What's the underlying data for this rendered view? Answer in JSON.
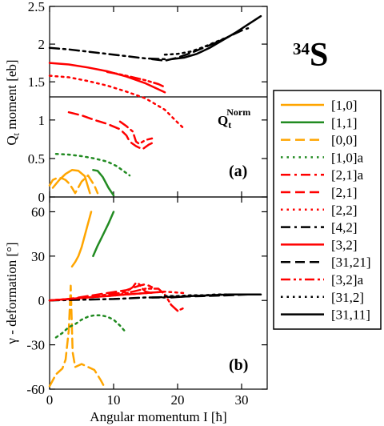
{
  "chart_data": [
    {
      "panel": "(a)",
      "type": "line",
      "ylabel_main": "Q",
      "ylabel_sub": "t",
      "ylabel_rest": " moment [eb]",
      "annotation_main": "Q",
      "annotation_sub": "t",
      "annotation_sup": "Norm",
      "xlim": [
        0,
        34
      ],
      "upper": {
        "ylim": [
          1.3,
          2.5
        ],
        "yticks": [
          "1.5",
          "2",
          "2.5"
        ]
      },
      "lower": {
        "ylim": [
          0,
          1.3
        ],
        "yticks": [
          "0",
          "0.5",
          "1"
        ]
      },
      "series": [
        {
          "name": "[1,0]",
          "part": "lower",
          "x": [
            0.5,
            1.5,
            2.5,
            3.5,
            4.5,
            5.5,
            6.3
          ],
          "y": [
            0.12,
            0.22,
            0.3,
            0.35,
            0.34,
            0.27,
            0.05
          ]
        },
        {
          "name": "[1,1]",
          "part": "lower",
          "x": [
            6.8,
            7.5,
            8.3,
            9.2,
            10.0
          ],
          "y": [
            0.35,
            0.34,
            0.26,
            0.12,
            0.02
          ]
        },
        {
          "name": "[0,0]",
          "part": "lower",
          "x": [
            0,
            0.5,
            1,
            1.5,
            2,
            2.5,
            3,
            3.5,
            4,
            5,
            6,
            7,
            7.5
          ],
          "y": [
            0.15,
            0.22,
            0.24,
            0.25,
            0.24,
            0.22,
            0.18,
            0.12,
            0.05,
            0.2,
            0.28,
            0.15,
            0.05
          ]
        },
        {
          "name": "[1,0]a",
          "part": "lower",
          "x": [
            1,
            3,
            5,
            7,
            9,
            10.5,
            12.5
          ],
          "y": [
            0.56,
            0.55,
            0.53,
            0.5,
            0.46,
            0.4,
            0.28
          ]
        },
        {
          "name": "[2,1]a",
          "part": "lower",
          "x": [
            11,
            12,
            13,
            13.5,
            14,
            15,
            16
          ],
          "y": [
            0.98,
            0.92,
            0.85,
            0.72,
            0.69,
            0.74,
            0.76
          ]
        },
        {
          "name": "[2,1]",
          "part": "lower",
          "x": [
            3,
            5,
            7,
            9,
            11,
            12,
            12.5,
            13.5,
            14.5,
            15.5,
            16.5
          ],
          "y": [
            1.1,
            1.06,
            1.0,
            0.95,
            0.88,
            0.8,
            0.72,
            0.66,
            0.62,
            0.68,
            0.72
          ]
        },
        {
          "name": "[2,2]",
          "part": "upper",
          "x": [
            0,
            3,
            6,
            9,
            12,
            15,
            18,
            20,
            21
          ],
          "y": [
            1.58,
            1.56,
            1.51,
            1.45,
            1.37,
            1.28,
            1.13,
            0.96,
            0.88
          ]
        },
        {
          "name": "[4,2]",
          "part": "upper",
          "x": [
            0,
            3,
            6,
            9,
            12,
            15,
            18
          ],
          "y": [
            1.95,
            1.93,
            1.9,
            1.87,
            1.84,
            1.81,
            1.8
          ]
        },
        {
          "name": "[3,2]",
          "part": "upper",
          "x": [
            0,
            3,
            6,
            9,
            12,
            15,
            18
          ],
          "y": [
            1.75,
            1.73,
            1.69,
            1.64,
            1.57,
            1.48,
            1.36
          ]
        },
        {
          "name": "[31,21]",
          "part": "upper",
          "x": [
            16,
            18,
            20,
            22,
            24,
            26,
            28,
            30,
            31
          ],
          "y": [
            1.8,
            1.78,
            1.82,
            1.88,
            1.95,
            2.02,
            2.1,
            2.18,
            2.21
          ]
        },
        {
          "name": "[3,2]a",
          "part": "upper",
          "x": [
            9,
            11,
            13,
            15,
            17,
            18
          ],
          "y": [
            1.63,
            1.6,
            1.56,
            1.52,
            1.47,
            1.43
          ]
        },
        {
          "name": "[31,2]",
          "part": "upper",
          "x": [
            18,
            20,
            22,
            24,
            26,
            28
          ],
          "y": [
            1.86,
            1.87,
            1.9,
            1.96,
            2.03,
            2.1
          ]
        },
        {
          "name": "[31,11]",
          "part": "upper",
          "x": [
            19,
            21,
            23,
            25,
            27,
            29,
            31,
            33
          ],
          "y": [
            1.8,
            1.82,
            1.87,
            1.95,
            2.05,
            2.15,
            2.26,
            2.37
          ]
        }
      ]
    },
    {
      "panel": "(b)",
      "type": "line",
      "ylabel": "γ - deformation [°]",
      "xlabel": "Angular momentum I [ħ]",
      "xlim": [
        0,
        34
      ],
      "xticks": [
        "0",
        "10",
        "20",
        "30"
      ],
      "ylim": [
        -60,
        70
      ],
      "yticks": [
        "-60",
        "-30",
        "0",
        "30",
        "60"
      ],
      "series": [
        {
          "name": "[1,0]",
          "x": [
            3.5,
            4,
            4.5,
            5,
            5.5,
            6,
            6.5
          ],
          "y": [
            23,
            26,
            30,
            36,
            44,
            52,
            60
          ]
        },
        {
          "name": "[1,1]",
          "x": [
            6.8,
            7.5,
            8.3,
            9.2,
            10.0
          ],
          "y": [
            30,
            37,
            44,
            52,
            60
          ]
        },
        {
          "name": "[0,0]",
          "x": [
            0,
            0.5,
            1,
            1.5,
            2,
            2.5,
            3,
            3.3,
            3.6,
            4,
            5,
            6,
            7,
            8,
            8.5
          ],
          "y": [
            -58,
            -54,
            -50,
            -48,
            -46,
            -40,
            -20,
            10,
            -35,
            -45,
            -43,
            -45,
            -47,
            -54,
            -58
          ]
        },
        {
          "name": "[1,0]a",
          "x": [
            1,
            2,
            3,
            4,
            5,
            6,
            7,
            8,
            9,
            10,
            11,
            12
          ],
          "y": [
            -25,
            -22,
            -18,
            -16,
            -13,
            -11,
            -10,
            -10,
            -11,
            -13,
            -17,
            -22
          ]
        },
        {
          "name": "[2,1]a",
          "x": [
            0,
            3,
            6,
            9,
            11,
            12,
            13,
            13.5,
            14,
            14.5,
            15,
            16
          ],
          "y": [
            0,
            1,
            2,
            4,
            5,
            6,
            9,
            12,
            11,
            8,
            6,
            5
          ]
        },
        {
          "name": "[2,1]",
          "x": [
            0,
            3,
            6,
            9,
            12,
            14,
            15,
            16
          ],
          "y": [
            0,
            1,
            3,
            5,
            7,
            10,
            11,
            9
          ]
        },
        {
          "name": "[2,2]",
          "x": [
            0,
            3,
            6,
            9,
            12,
            15,
            18,
            21
          ],
          "y": [
            0,
            1,
            2,
            3,
            4,
            5,
            6,
            5
          ]
        },
        {
          "name": "[4,2]",
          "x": [
            0,
            5,
            10,
            15,
            18
          ],
          "y": [
            0,
            0.5,
            1,
            2,
            2
          ]
        },
        {
          "name": "[3,2]",
          "x": [
            0,
            3,
            6,
            9,
            12,
            15,
            18
          ],
          "y": [
            0,
            1,
            2,
            3,
            4,
            5,
            6
          ]
        },
        {
          "name": "[31,21]",
          "x": [
            16,
            20,
            24,
            28,
            31
          ],
          "y": [
            2,
            2.5,
            3,
            3.5,
            4
          ]
        },
        {
          "name": "[3,2]a",
          "x": [
            9,
            11,
            13,
            15,
            17,
            18,
            19,
            20,
            21
          ],
          "y": [
            3,
            4,
            6,
            8,
            8,
            4,
            -3,
            -7,
            -5
          ]
        },
        {
          "name": "[31,2]",
          "x": [
            18,
            20,
            22,
            24,
            26,
            28
          ],
          "y": [
            3,
            3,
            3.5,
            3.5,
            4,
            4
          ]
        },
        {
          "name": "[31,11]",
          "x": [
            19,
            22,
            25,
            28,
            31,
            33
          ],
          "y": [
            2,
            3,
            3.5,
            4,
            4,
            4
          ]
        }
      ]
    }
  ],
  "legend": [
    {
      "label": "[1,0]",
      "color": "#FFA500",
      "dash": "solid",
      "width": 2.5
    },
    {
      "label": "[1,1]",
      "color": "#228B22",
      "dash": "solid",
      "width": 2.5
    },
    {
      "label": "[0,0]",
      "color": "#FFA500",
      "dash": "dash",
      "width": 2.5
    },
    {
      "label": "[1,0]a",
      "color": "#228B22",
      "dash": "dot",
      "width": 2.5
    },
    {
      "label": "[2,1]a",
      "color": "#FF0000",
      "dash": "dashdot",
      "width": 2.5
    },
    {
      "label": "[2,1]",
      "color": "#FF0000",
      "dash": "dash",
      "width": 2.5
    },
    {
      "label": "[2,2]",
      "color": "#FF0000",
      "dash": "dot",
      "width": 2.5
    },
    {
      "label": "[4,2]",
      "color": "#000000",
      "dash": "dashdot",
      "width": 2.5
    },
    {
      "label": "[3,2]",
      "color": "#FF0000",
      "dash": "solid",
      "width": 2.5
    },
    {
      "label": "[31,21]",
      "color": "#000000",
      "dash": "dash",
      "width": 2.5
    },
    {
      "label": "[3,2]a",
      "color": "#FF0000",
      "dash": "dashdotdot",
      "width": 2.5
    },
    {
      "label": "[31,2]",
      "color": "#000000",
      "dash": "dot",
      "width": 2.5
    },
    {
      "label": "[31,11]",
      "color": "#000000",
      "dash": "solid",
      "width": 2.5
    }
  ],
  "nucleus": {
    "mass": "34",
    "symbol": "S"
  },
  "panel_labels": {
    "a": "(a)",
    "b": "(b)"
  }
}
